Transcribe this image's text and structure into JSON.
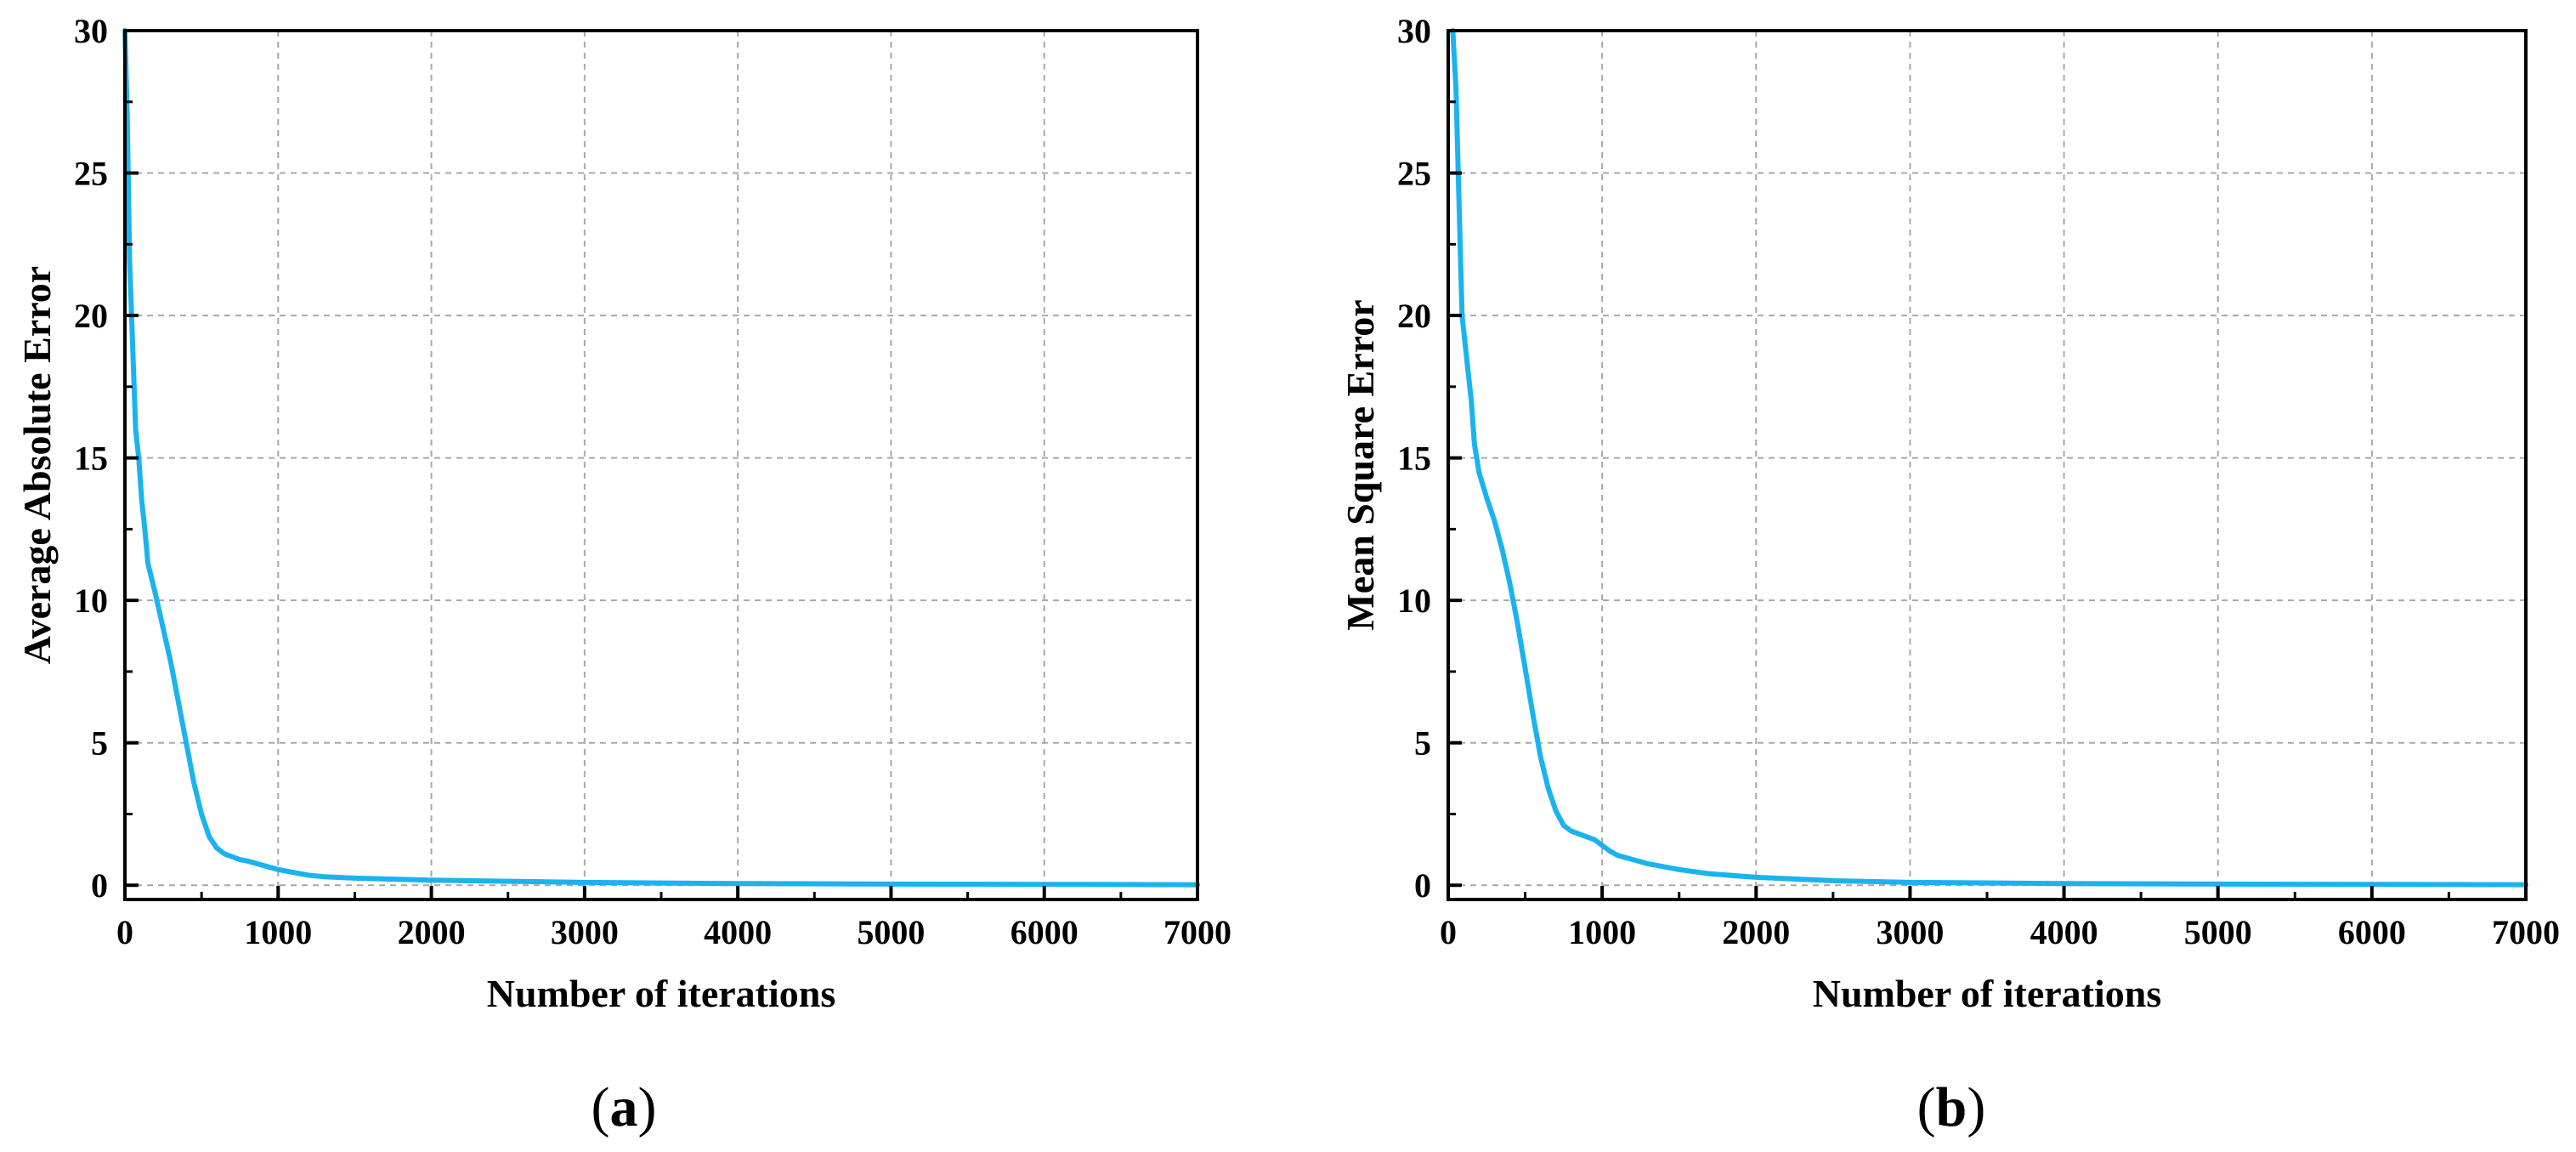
{
  "figure": {
    "line_color": "#1bb3ef",
    "grid_color": "#a8a8a8",
    "axis_color": "#000000"
  },
  "chart_data": [
    {
      "type": "line",
      "panel_label": "a",
      "xlabel": "Number of iterations",
      "ylabel": "Average Absolute Error",
      "xlim": [
        0,
        7000
      ],
      "ylim": [
        -0.5,
        30
      ],
      "x_ticks": [
        0,
        1000,
        2000,
        3000,
        4000,
        5000,
        6000,
        7000
      ],
      "y_ticks": [
        0,
        5,
        10,
        15,
        20,
        25,
        30
      ],
      "x_tick_labels": [
        "0",
        "1000",
        "2000",
        "3000",
        "4000",
        "5000",
        "6000",
        "7000"
      ],
      "y_tick_labels": [
        "0",
        "5",
        "10",
        "15",
        "20",
        "25",
        "30"
      ],
      "grid": true,
      "series": [
        {
          "x": [
            0,
            15,
            30,
            50,
            70,
            90,
            110,
            130,
            150,
            200,
            250,
            300,
            350,
            400,
            450,
            500,
            550,
            600,
            650,
            700,
            750,
            800,
            900,
            1000,
            1100,
            1200,
            1300,
            1500,
            2000,
            2500,
            3000,
            3500,
            4000,
            5000,
            6000,
            7000
          ],
          "y": [
            30,
            27,
            22,
            19,
            16,
            15,
            13.5,
            12.5,
            11.3,
            10.2,
            9.0,
            7.8,
            6.4,
            5.0,
            3.6,
            2.5,
            1.7,
            1.3,
            1.1,
            1.0,
            0.9,
            0.85,
            0.7,
            0.55,
            0.45,
            0.35,
            0.3,
            0.25,
            0.18,
            0.14,
            0.1,
            0.08,
            0.06,
            0.04,
            0.03,
            0.02
          ]
        }
      ]
    },
    {
      "type": "line",
      "panel_label": "b",
      "xlabel": "Number of iterations",
      "ylabel": "Mean Square Error",
      "xlim": [
        0,
        7000
      ],
      "ylim": [
        -0.5,
        30
      ],
      "x_ticks": [
        0,
        1000,
        2000,
        3000,
        4000,
        5000,
        6000,
        7000
      ],
      "y_ticks": [
        0,
        5,
        10,
        15,
        20,
        25,
        30
      ],
      "x_tick_labels": [
        "0",
        "1000",
        "2000",
        "3000",
        "4000",
        "5000",
        "6000",
        "7000"
      ],
      "y_tick_labels": [
        "0",
        "5",
        "10",
        "15",
        "20",
        "25",
        "30"
      ],
      "grid": true,
      "series": [
        {
          "x": [
            30,
            50,
            70,
            90,
            110,
            130,
            150,
            170,
            200,
            250,
            300,
            350,
            400,
            450,
            500,
            550,
            600,
            650,
            700,
            750,
            800,
            850,
            900,
            950,
            1000,
            1050,
            1100,
            1200,
            1300,
            1500,
            1700,
            2000,
            2500,
            3000,
            4000,
            5000,
            6000,
            7000
          ],
          "y": [
            30,
            28,
            24,
            20,
            19,
            18,
            17,
            15.5,
            14.5,
            13.6,
            12.8,
            11.8,
            10.6,
            9.2,
            7.6,
            6.0,
            4.5,
            3.4,
            2.6,
            2.1,
            1.9,
            1.8,
            1.7,
            1.6,
            1.4,
            1.2,
            1.05,
            0.9,
            0.75,
            0.55,
            0.4,
            0.28,
            0.16,
            0.1,
            0.06,
            0.04,
            0.03,
            0.02
          ]
        }
      ]
    }
  ]
}
